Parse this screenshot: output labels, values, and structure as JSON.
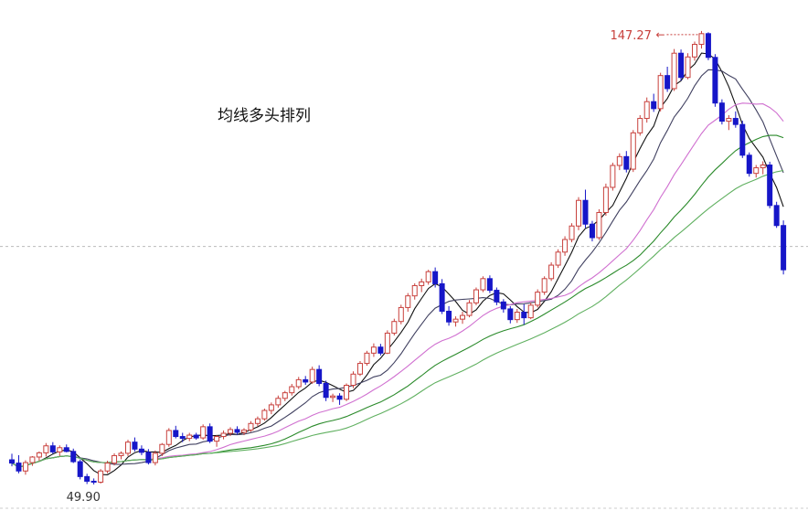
{
  "chart_data": {
    "type": "candlestick",
    "title": "均线多头排列",
    "xlabel": "",
    "ylabel": "",
    "ylim": [
      45,
      150
    ],
    "grid": false,
    "colors": {
      "up": "#c8403c",
      "down": "#1616c8",
      "ma_fast": "#111111",
      "ma_mid": "#404060",
      "ma_pink": "#d070d0",
      "ma_green": "#2a8a2a",
      "ma_lightgreen": "#60b060",
      "ref_line": "#bbbbbb",
      "annotation": "#c8403c"
    },
    "reference_line_value": 101,
    "annotations": {
      "high": {
        "label": "147.27",
        "value": 147.27,
        "arrow": "←"
      },
      "low": {
        "label": "49.90",
        "value": 49.9
      }
    },
    "candles": [
      [
        55.2,
        56.5,
        53.8,
        54.5
      ],
      [
        54.5,
        56.2,
        52.3,
        52.8
      ],
      [
        52.8,
        55.1,
        52.0,
        54.6
      ],
      [
        54.6,
        56.0,
        53.9,
        55.8
      ],
      [
        55.8,
        57.0,
        55.0,
        56.7
      ],
      [
        56.7,
        58.8,
        55.9,
        58.2
      ],
      [
        58.2,
        59.0,
        56.5,
        56.9
      ],
      [
        56.9,
        58.3,
        56.0,
        57.8
      ],
      [
        57.8,
        58.5,
        56.8,
        57.0
      ],
      [
        57.0,
        57.6,
        54.5,
        54.8
      ],
      [
        54.8,
        55.3,
        51.0,
        51.6
      ],
      [
        51.6,
        52.2,
        50.0,
        50.6
      ],
      [
        50.6,
        51.2,
        49.9,
        50.4
      ],
      [
        50.4,
        53.2,
        50.1,
        52.8
      ],
      [
        52.8,
        55.0,
        52.3,
        54.5
      ],
      [
        54.5,
        56.6,
        54.0,
        56.1
      ],
      [
        56.1,
        57.0,
        55.3,
        56.6
      ],
      [
        56.6,
        59.5,
        56.0,
        59.0
      ],
      [
        59.0,
        60.0,
        57.0,
        57.5
      ],
      [
        57.5,
        58.3,
        56.2,
        56.8
      ],
      [
        56.8,
        57.5,
        54.2,
        54.6
      ],
      [
        54.6,
        57.2,
        54.0,
        56.6
      ],
      [
        56.6,
        58.8,
        56.0,
        58.5
      ],
      [
        58.5,
        62.0,
        58.0,
        61.5
      ],
      [
        61.5,
        62.5,
        59.8,
        60.2
      ],
      [
        60.2,
        61.0,
        59.0,
        59.8
      ],
      [
        59.8,
        61.0,
        59.2,
        60.5
      ],
      [
        60.5,
        61.0,
        59.5,
        59.9
      ],
      [
        59.9,
        62.8,
        59.5,
        62.3
      ],
      [
        62.3,
        63.0,
        58.8,
        59.2
      ],
      [
        59.2,
        60.5,
        58.0,
        60.2
      ],
      [
        60.2,
        61.5,
        59.6,
        60.9
      ],
      [
        60.9,
        62.2,
        60.3,
        61.7
      ],
      [
        61.7,
        62.4,
        60.6,
        61.1
      ],
      [
        61.1,
        62.0,
        60.5,
        61.6
      ],
      [
        61.6,
        63.5,
        61.2,
        63.0
      ],
      [
        63.0,
        64.5,
        62.4,
        64.0
      ],
      [
        64.0,
        66.2,
        63.6,
        65.8
      ],
      [
        65.8,
        67.5,
        65.0,
        67.0
      ],
      [
        67.0,
        69.0,
        66.4,
        68.4
      ],
      [
        68.4,
        70.0,
        67.8,
        69.6
      ],
      [
        69.6,
        71.5,
        69.0,
        70.9
      ],
      [
        70.9,
        73.0,
        70.4,
        72.4
      ],
      [
        72.4,
        73.2,
        71.3,
        71.9
      ],
      [
        71.9,
        75.2,
        71.5,
        74.6
      ],
      [
        74.6,
        75.5,
        71.0,
        71.6
      ],
      [
        71.6,
        72.2,
        67.8,
        68.6
      ],
      [
        68.6,
        69.4,
        67.6,
        68.9
      ],
      [
        68.9,
        69.5,
        67.0,
        68.2
      ],
      [
        68.2,
        71.6,
        67.8,
        71.2
      ],
      [
        71.2,
        74.2,
        70.6,
        73.6
      ],
      [
        73.6,
        76.4,
        73.2,
        75.9
      ],
      [
        75.9,
        78.6,
        75.4,
        78.1
      ],
      [
        78.1,
        80.2,
        77.3,
        79.4
      ],
      [
        79.4,
        80.1,
        77.6,
        78.1
      ],
      [
        78.1,
        83.0,
        77.9,
        82.4
      ],
      [
        82.4,
        85.5,
        81.9,
        84.9
      ],
      [
        84.9,
        88.5,
        84.3,
        87.9
      ],
      [
        87.9,
        91.0,
        87.0,
        90.4
      ],
      [
        90.4,
        93.1,
        89.6,
        92.6
      ],
      [
        92.6,
        94.1,
        91.2,
        93.4
      ],
      [
        93.4,
        96.0,
        92.8,
        95.6
      ],
      [
        95.6,
        96.5,
        92.2,
        93.0
      ],
      [
        93.0,
        94.0,
        86.5,
        87.1
      ],
      [
        87.1,
        88.2,
        84.0,
        84.8
      ],
      [
        84.8,
        86.0,
        83.8,
        85.4
      ],
      [
        85.4,
        87.0,
        84.4,
        86.2
      ],
      [
        86.2,
        89.5,
        85.8,
        88.9
      ],
      [
        88.9,
        92.2,
        88.4,
        91.7
      ],
      [
        91.7,
        94.6,
        91.2,
        94.1
      ],
      [
        94.1,
        94.8,
        91.0,
        91.6
      ],
      [
        91.6,
        92.2,
        88.4,
        89.1
      ],
      [
        89.1,
        89.7,
        86.8,
        87.6
      ],
      [
        87.6,
        88.2,
        84.5,
        85.3
      ],
      [
        85.3,
        87.6,
        84.6,
        86.9
      ],
      [
        86.9,
        88.6,
        84.2,
        85.7
      ],
      [
        85.7,
        89.0,
        85.4,
        88.4
      ],
      [
        88.4,
        91.8,
        87.9,
        91.2
      ],
      [
        91.2,
        94.6,
        90.6,
        94.1
      ],
      [
        94.1,
        97.6,
        93.6,
        97.0
      ],
      [
        97.0,
        100.4,
        96.4,
        99.8
      ],
      [
        99.8,
        103.2,
        99.0,
        102.5
      ],
      [
        102.5,
        106.0,
        101.9,
        105.4
      ],
      [
        105.4,
        111.6,
        104.5,
        110.9
      ],
      [
        110.9,
        113.2,
        105.0,
        105.8
      ],
      [
        105.8,
        106.5,
        102.1,
        102.9
      ],
      [
        102.9,
        109.0,
        102.4,
        108.3
      ],
      [
        108.3,
        114.5,
        107.6,
        113.7
      ],
      [
        113.7,
        119.0,
        113.0,
        118.4
      ],
      [
        118.4,
        121.0,
        117.4,
        120.3
      ],
      [
        120.3,
        121.5,
        116.9,
        117.6
      ],
      [
        117.6,
        126.0,
        117.0,
        125.4
      ],
      [
        125.4,
        129.2,
        124.8,
        128.5
      ],
      [
        128.5,
        133.0,
        127.6,
        132.1
      ],
      [
        132.1,
        133.8,
        129.9,
        130.6
      ],
      [
        130.6,
        138.3,
        130.0,
        137.7
      ],
      [
        137.7,
        139.6,
        134.2,
        134.9
      ],
      [
        134.9,
        143.4,
        134.4,
        142.5
      ],
      [
        142.5,
        143.3,
        136.6,
        137.3
      ],
      [
        137.3,
        142.5,
        136.9,
        141.7
      ],
      [
        141.7,
        145.0,
        140.9,
        144.4
      ],
      [
        144.4,
        147.27,
        143.5,
        146.7
      ],
      [
        146.7,
        147.0,
        141.0,
        141.6
      ],
      [
        141.6,
        142.3,
        131.0,
        131.8
      ],
      [
        131.8,
        132.6,
        127.2,
        127.9
      ],
      [
        127.9,
        129.2,
        126.0,
        128.5
      ],
      [
        128.5,
        130.0,
        126.5,
        127.2
      ],
      [
        127.2,
        128.0,
        120.0,
        120.6
      ],
      [
        120.6,
        121.2,
        116.0,
        116.7
      ],
      [
        116.7,
        118.5,
        115.8,
        117.9
      ],
      [
        117.9,
        119.3,
        116.5,
        118.5
      ],
      [
        118.5,
        119.2,
        109.2,
        109.8
      ],
      [
        109.8,
        110.6,
        105.0,
        105.5
      ],
      [
        105.5,
        106.6,
        95.0,
        96.0
      ]
    ],
    "moving_averages": [
      {
        "key": "ma_fast",
        "period": 5,
        "color": "#111111"
      },
      {
        "key": "ma_mid",
        "period": 10,
        "color": "#404060"
      },
      {
        "key": "ma_pink",
        "period": 20,
        "color": "#d070d0"
      },
      {
        "key": "ma_green",
        "period": 30,
        "color": "#2a8a2a"
      },
      {
        "key": "ma_lightgreen",
        "period": 40,
        "color": "#60b060"
      }
    ]
  }
}
